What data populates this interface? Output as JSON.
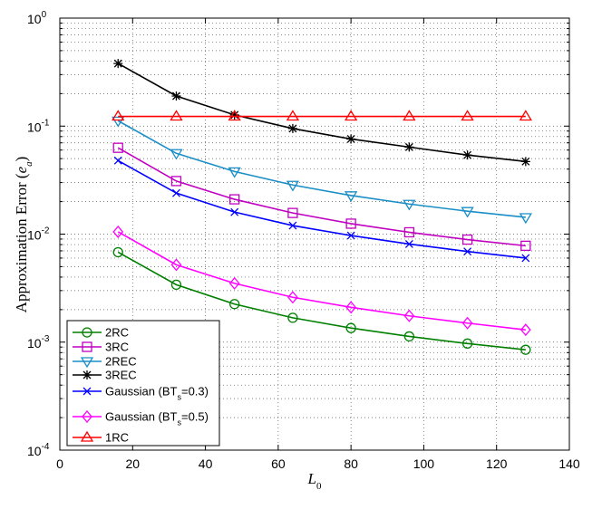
{
  "chart_data": {
    "type": "line",
    "yscale": "log",
    "xlabel": "L",
    "xlabel_sub": "0",
    "ylabel": "Approximation Error (",
    "ylabel_var": "e",
    "ylabel_sub": "a",
    "ylabel_close": ")",
    "xlim": [
      0,
      140
    ],
    "ylim": [
      0.0001,
      1
    ],
    "xticks": [
      0,
      20,
      40,
      60,
      80,
      100,
      120,
      140
    ],
    "xtick_labels": [
      "0",
      "20",
      "40",
      "60",
      "80",
      "100",
      "120",
      "140"
    ],
    "yticks": [
      0.0001,
      0.001,
      0.01,
      0.1,
      1
    ],
    "ytick_labels": [
      {
        "base": "10",
        "exp": "-4"
      },
      {
        "base": "10",
        "exp": "-3"
      },
      {
        "base": "10",
        "exp": "-2"
      },
      {
        "base": "10",
        "exp": "-1"
      },
      {
        "base": "10",
        "exp": "0"
      }
    ],
    "grid": true,
    "legend_position": "bottom-left",
    "x": [
      16,
      32,
      48,
      64,
      80,
      96,
      112,
      128
    ],
    "series": [
      {
        "name": "2RC",
        "label": "2RC",
        "color": "#008000",
        "marker": "circle",
        "values": [
          0.0068,
          0.0034,
          0.00225,
          0.00168,
          0.00135,
          0.00113,
          0.00097,
          0.00085
        ]
      },
      {
        "name": "3RC",
        "label": "3RC",
        "color": "#c000c0",
        "marker": "square",
        "values": [
          0.063,
          0.031,
          0.021,
          0.0157,
          0.0125,
          0.0104,
          0.0089,
          0.0078
        ]
      },
      {
        "name": "2REC",
        "label": "2REC",
        "color": "#1a8ec6",
        "marker": "triangle-down",
        "values": [
          0.112,
          0.056,
          0.038,
          0.0285,
          0.0228,
          0.019,
          0.0163,
          0.0143
        ]
      },
      {
        "name": "3REC",
        "label": "3REC",
        "color": "#000000",
        "marker": "star",
        "values": [
          0.38,
          0.19,
          0.127,
          0.095,
          0.076,
          0.064,
          0.054,
          0.047
        ]
      },
      {
        "name": "Gaussian (BTs=0.3)",
        "label": "Gaussian (BT",
        "label_sub": "s",
        "label_tail": "=0.3)",
        "color": "#0000ff",
        "marker": "x",
        "values": [
          0.048,
          0.024,
          0.016,
          0.012,
          0.0097,
          0.0081,
          0.0069,
          0.006
        ]
      },
      {
        "name": "Gaussian (BTs=0.5)",
        "label": "Gaussian (BT",
        "label_sub": "s",
        "label_tail": "=0.5)",
        "color": "#ff00ff",
        "marker": "diamond",
        "values": [
          0.0105,
          0.0052,
          0.0035,
          0.0026,
          0.0021,
          0.00175,
          0.0015,
          0.0013
        ]
      },
      {
        "name": "1RC",
        "label": "1RC",
        "color": "#ff0000",
        "marker": "triangle-up",
        "values": [
          0.123,
          0.123,
          0.123,
          0.123,
          0.123,
          0.123,
          0.123,
          0.123
        ]
      }
    ]
  }
}
